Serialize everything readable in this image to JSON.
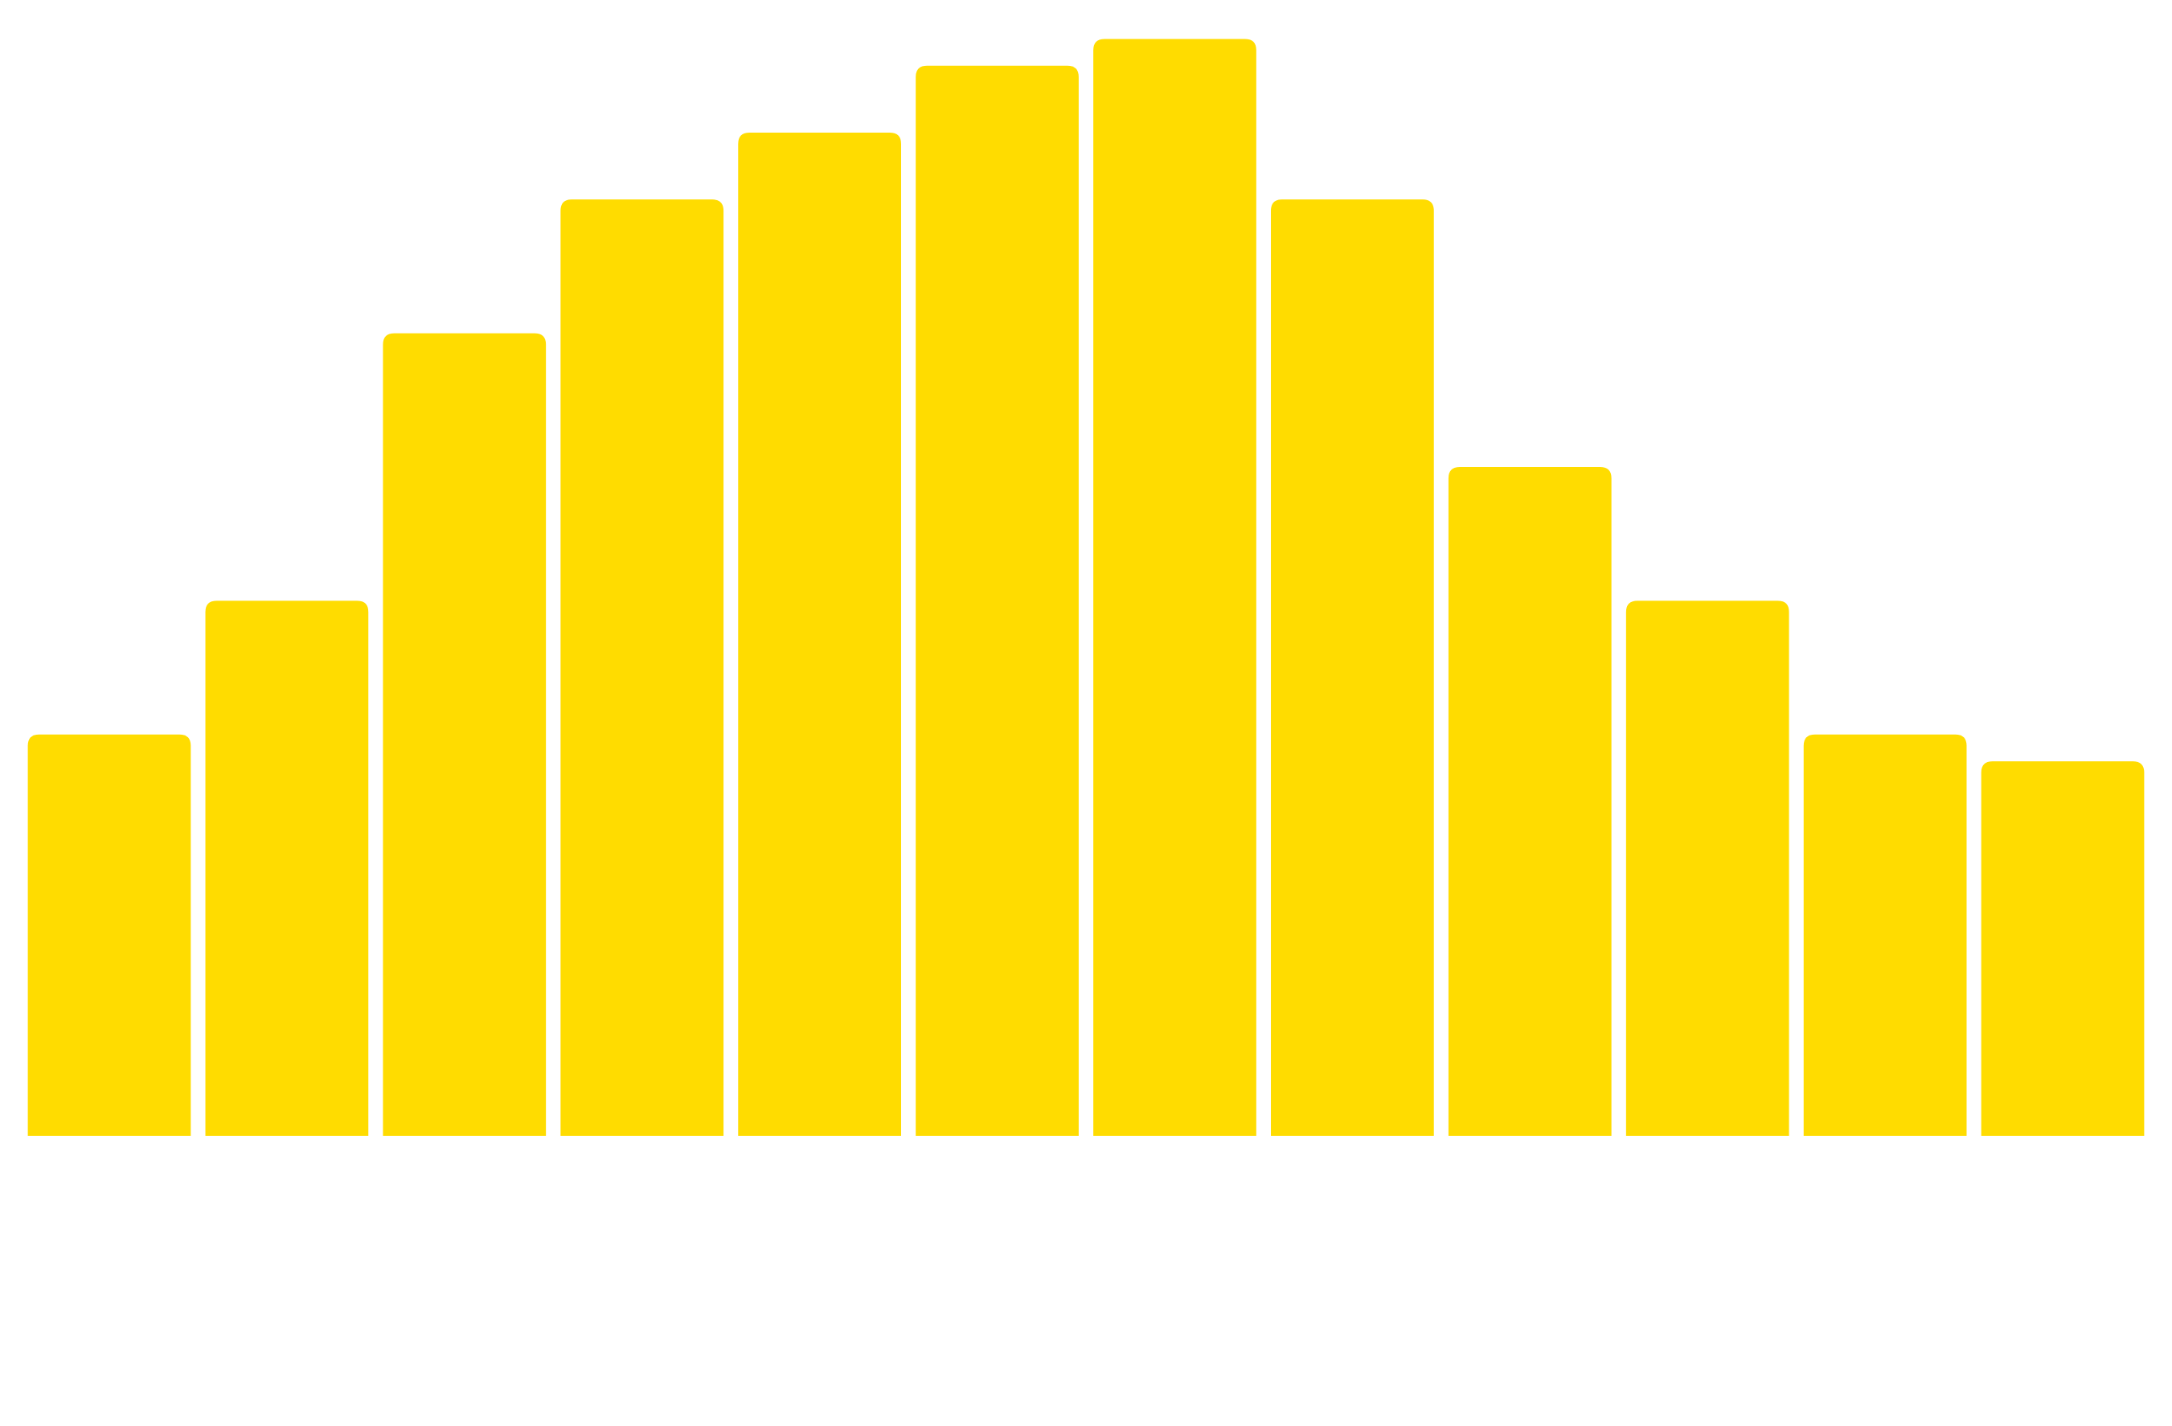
{
  "chart_data": {
    "type": "bar",
    "values": [
      6,
      8,
      12,
      14,
      15,
      16,
      16.4,
      14,
      10,
      8,
      6,
      5.6
    ],
    "color": "#FFDC00"
  }
}
